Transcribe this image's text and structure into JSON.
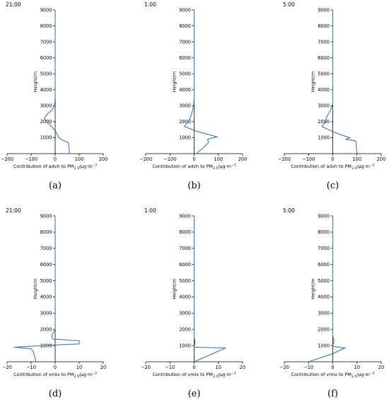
{
  "chart_data": [
    {
      "type": "line",
      "title": "21:00",
      "xlabel": "Contribution of advh to PM",
      "xlabel_sub": "2.5",
      "xlabel_unit": "/μg·m",
      "xlabel_sup": "−3",
      "ylabel": "Height/m",
      "xlim": [
        -200,
        200
      ],
      "ylim": [
        0,
        9000
      ],
      "xticks": [
        "−200",
        "−100",
        "0",
        "100",
        "200"
      ],
      "yticks": [
        "1000",
        "2000",
        "3000",
        "4000",
        "5000",
        "6000",
        "7000",
        "8000",
        "9000"
      ],
      "panel_label": "(a)",
      "series": [
        {
          "x": [
            60,
            55,
            30,
            15,
            10,
            2,
            -10,
            -18,
            -30,
            -45,
            -35,
            -15,
            -3,
            0,
            0,
            0,
            0,
            0,
            0,
            0,
            0
          ],
          "y": [
            0,
            700,
            850,
            1000,
            1150,
            1400,
            1600,
            1750,
            1900,
            2200,
            2450,
            2700,
            3000,
            3500,
            4000,
            5000,
            6000,
            7000,
            8000,
            8500,
            9000
          ]
        }
      ]
    },
    {
      "type": "line",
      "title": "1:00",
      "xlabel": "Contribution of advh to PM",
      "xlabel_sub": "2.5",
      "xlabel_unit": "/μg·m",
      "xlabel_sup": "−3",
      "ylabel": "Height/m",
      "xlim": [
        -200,
        200
      ],
      "ylim": [
        0,
        9000
      ],
      "xticks": [
        "−200",
        "−100",
        "0",
        "100",
        "200"
      ],
      "yticks": [
        "1000",
        "2000",
        "3000",
        "4000",
        "5000",
        "6000",
        "7000",
        "8000",
        "9000"
      ],
      "panel_label": "(b)",
      "series": [
        {
          "x": [
            10,
            40,
            60,
            55,
            95,
            10,
            -40,
            -20,
            -10,
            -2,
            0,
            0,
            0,
            0,
            0,
            0,
            0,
            0
          ],
          "y": [
            0,
            400,
            700,
            900,
            1050,
            1400,
            1700,
            2100,
            2500,
            3000,
            3500,
            4000,
            5000,
            6000,
            7000,
            8000,
            8500,
            9000
          ]
        }
      ]
    },
    {
      "type": "line",
      "title": "5:00",
      "xlabel": "Contribution of advh to PM",
      "xlabel_sub": "2.5",
      "xlabel_unit": "/μg·m",
      "xlabel_sup": "−3",
      "ylabel": "Height/m",
      "xlim": [
        -200,
        200
      ],
      "ylim": [
        0,
        9000
      ],
      "xticks": [
        "−200",
        "−100",
        "0",
        "100",
        "200"
      ],
      "yticks": [
        "1000",
        "2000",
        "3000",
        "4000",
        "5000",
        "6000",
        "7000",
        "8000",
        "9000"
      ],
      "panel_label": "(c)",
      "series": [
        {
          "x": [
            100,
            95,
            55,
            70,
            30,
            -10,
            -45,
            -30,
            -25,
            -10,
            0,
            0,
            0,
            0,
            0,
            0,
            0,
            0,
            0
          ],
          "y": [
            0,
            800,
            900,
            1000,
            1200,
            1450,
            1700,
            2000,
            2300,
            2700,
            3100,
            3500,
            4000,
            5000,
            6000,
            7000,
            8000,
            8500,
            9000
          ]
        }
      ]
    },
    {
      "type": "line",
      "title": "21:00",
      "xlabel": "Contribution of vmix to PM",
      "xlabel_sub": "2.5",
      "xlabel_unit": "/μg·m",
      "xlabel_sup": "−3",
      "ylabel": "Height/m",
      "xlim": [
        -20,
        20
      ],
      "ylim": [
        0,
        9000
      ],
      "xticks": [
        "−20",
        "−10",
        "0",
        "10",
        "20"
      ],
      "yticks": [
        "1000",
        "2000",
        "3000",
        "4000",
        "5000",
        "6000",
        "7000",
        "8000",
        "9000"
      ],
      "panel_label": "(d)",
      "series": [
        {
          "x": [
            -8,
            -9,
            -10,
            -17,
            -5,
            10,
            10,
            -1,
            -1.5,
            0,
            0,
            0,
            0,
            0,
            0,
            0,
            0,
            0
          ],
          "y": [
            0,
            600,
            800,
            900,
            1000,
            1100,
            1300,
            1400,
            1600,
            2000,
            3000,
            4000,
            5000,
            6000,
            7000,
            8000,
            8500,
            9000
          ]
        }
      ]
    },
    {
      "type": "line",
      "title": "1:00",
      "xlabel": "Contribution of vmix to PM",
      "xlabel_sub": "2.5",
      "xlabel_unit": "/μg·m",
      "xlabel_sup": "−3",
      "ylabel": "Height/m",
      "xlim": [
        -20,
        20
      ],
      "ylim": [
        0,
        9000
      ],
      "xticks": [
        "−20",
        "−10",
        "0",
        "10",
        "20"
      ],
      "yticks": [
        "1000",
        "2000",
        "3000",
        "4000",
        "5000",
        "6000",
        "7000",
        "8000",
        "9000"
      ],
      "panel_label": "(e)",
      "series": [
        {
          "x": [
            0,
            13,
            0,
            0.4,
            0,
            0,
            0,
            0,
            0,
            0,
            0,
            0
          ],
          "y": [
            0,
            850,
            900,
            1200,
            1500,
            3000,
            4000,
            5000,
            6000,
            7000,
            8000,
            9000
          ]
        }
      ]
    },
    {
      "type": "line",
      "title": "5:00",
      "xlabel": "Contribution of vmix to PM",
      "xlabel_sub": "2.5",
      "xlabel_unit": "/μg·m",
      "xlabel_sup": "−3",
      "ylabel": "Height/m",
      "xlim": [
        -20,
        20
      ],
      "ylim": [
        0,
        9000
      ],
      "xticks": [
        "−20",
        "−10",
        "0",
        "10",
        "20"
      ],
      "yticks": [
        "1000",
        "2000",
        "3000",
        "4000",
        "5000",
        "6000",
        "7000",
        "8000",
        "9000"
      ],
      "panel_label": "(f)",
      "series": [
        {
          "x": [
            -10,
            0,
            5,
            0,
            0.5,
            0,
            0,
            0,
            0,
            0,
            0,
            0,
            0
          ],
          "y": [
            0,
            500,
            850,
            950,
            1300,
            1600,
            3000,
            4000,
            5000,
            6000,
            7000,
            8000,
            9000
          ]
        }
      ]
    }
  ]
}
